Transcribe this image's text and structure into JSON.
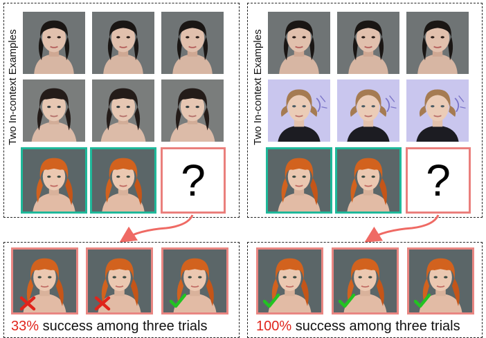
{
  "left_panel": {
    "side_label": "Two In-context Examples",
    "example_rows": [
      {
        "subject": "dark-haired woman, bun",
        "tiles": 3
      },
      {
        "subject": "dark-haired woman, bangs",
        "tiles": 3
      }
    ],
    "query_row": {
      "subject": "red-haired woman",
      "query_symbol": "?"
    }
  },
  "right_panel": {
    "side_label": "Two In-context Examples",
    "example_rows": [
      {
        "subject": "dark-haired woman, bun",
        "tiles": 3
      },
      {
        "subject": "blonde woman, purple background",
        "tiles": 3
      }
    ],
    "query_row": {
      "subject": "red-haired woman",
      "query_symbol": "?"
    }
  },
  "left_results": {
    "marks": [
      "cross-icon",
      "cross-icon",
      "check-icon"
    ],
    "caption_pct": "33%",
    "caption_rest": " success among three trials"
  },
  "right_results": {
    "marks": [
      "check-icon",
      "check-icon",
      "check-icon"
    ],
    "caption_pct": "100%",
    "caption_rest": " success among three trials"
  },
  "colors": {
    "teal_frame": "#1fb89a",
    "red_frame": "#e98682",
    "arrow": "#ef6a64",
    "cross": "#e0241b",
    "check": "#22c322",
    "pct_text": "#e0241b"
  }
}
